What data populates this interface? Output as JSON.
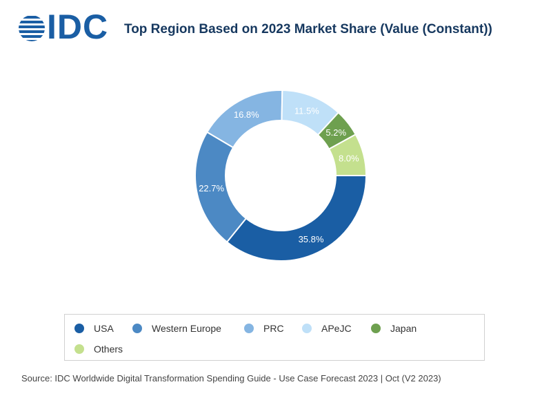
{
  "header": {
    "logo_text": "IDC",
    "title": "Top Region Based on 2023 Market Share (Value (Constant))"
  },
  "chart_data": {
    "type": "pie",
    "donut": true,
    "categories": [
      "USA",
      "Western Europe",
      "PRC",
      "APeJC",
      "Japan",
      "Others"
    ],
    "values": [
      35.8,
      22.7,
      16.8,
      11.5,
      5.2,
      8.0
    ],
    "data_labels": [
      "35.8%",
      "22.7%",
      "16.8%",
      "11.5%",
      "5.2%",
      "8.0%"
    ],
    "colors": [
      "#1a5ea4",
      "#4c89c4",
      "#85b5e2",
      "#bfe0f8",
      "#6ea04f",
      "#c4e08e"
    ],
    "label_colors": [
      "#ffffff",
      "#ffffff",
      "#ffffff",
      "#ffffff",
      "#ffffff",
      "#ffffff"
    ],
    "legend_position": "bottom"
  },
  "legend": {
    "items": [
      {
        "label": "USA",
        "color": "#1a5ea4"
      },
      {
        "label": "Western Europe",
        "color": "#4c89c4"
      },
      {
        "label": "PRC",
        "color": "#85b5e2"
      },
      {
        "label": "APeJC",
        "color": "#bfe0f8"
      },
      {
        "label": "Japan",
        "color": "#6ea04f"
      },
      {
        "label": "Others",
        "color": "#c4e08e"
      }
    ]
  },
  "footer": {
    "source": "Source: IDC Worldwide Digital Transformation Spending Guide - Use Case Forecast 2023 | Oct (V2 2023)"
  }
}
